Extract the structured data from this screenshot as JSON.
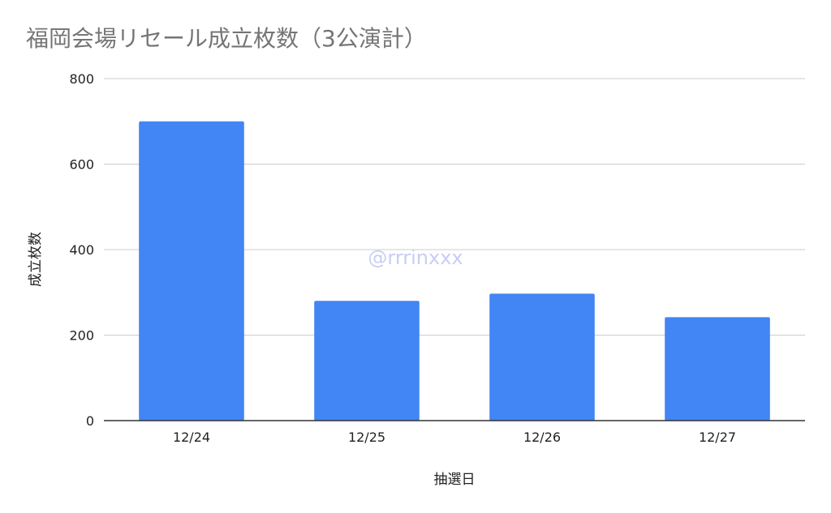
{
  "chart_data": {
    "type": "bar",
    "title": "福岡会場リセール成立枚数（3公演計）",
    "xlabel": "抽選日",
    "ylabel": "成立枚数",
    "categories": [
      "12/24",
      "12/25",
      "12/26",
      "12/27"
    ],
    "values": [
      700,
      280,
      297,
      242
    ],
    "ylim": [
      0,
      800
    ],
    "yticks": [
      0,
      200,
      400,
      600,
      800
    ],
    "grid": true,
    "legend": "none",
    "bar_color": "#4285f4",
    "annotation": "@rrrinxxx"
  },
  "colors": {
    "title": "#757575",
    "gridline": "#cccccc",
    "baseline": "#333333",
    "watermark": "#c9cdf3"
  }
}
